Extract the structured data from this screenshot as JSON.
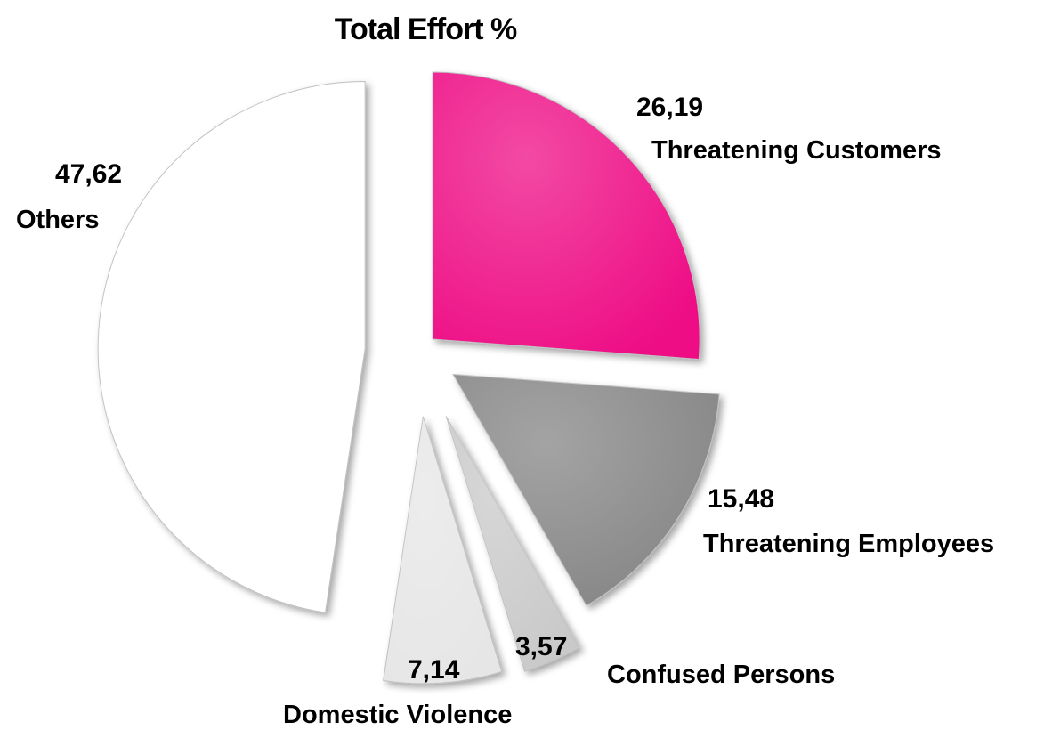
{
  "chart_data": {
    "type": "pie",
    "title": "Total Effort %",
    "slices": [
      {
        "label": "Threatening Customers",
        "value_label": "26,19",
        "value": 26.19,
        "color": "#ee0a85"
      },
      {
        "label": "Threatening Employees",
        "value_label": "15,48",
        "value": 15.48,
        "color": "#858585"
      },
      {
        "label": "Confused Persons",
        "value_label": "3,57",
        "value": 3.57,
        "color": "#c9c9c9"
      },
      {
        "label": "Domestic Violence",
        "value_label": "7,14",
        "value": 7.14,
        "color": "#e6e6e6"
      },
      {
        "label": "Others",
        "value_label": "47,62",
        "value": 47.62,
        "color": "#ffffff"
      }
    ],
    "exploded": true,
    "legend": "none"
  }
}
